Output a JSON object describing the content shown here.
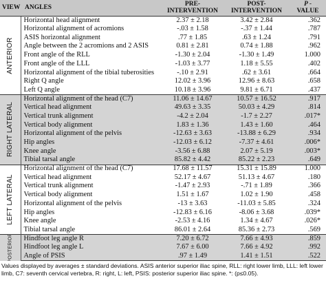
{
  "header": {
    "view": "VIEW",
    "angles": "ANGLES",
    "pre_line1": "PRE-",
    "pre_line2": "INTERVENTION",
    "post_line1": "POST-",
    "post_line2": "INTERVENTION",
    "p_line1": "P -",
    "p_line2": "VALUE"
  },
  "groups": [
    {
      "view": "ANTERIOR",
      "shaded": false,
      "rows": [
        {
          "angle": "Horizontal head alignment",
          "pre": "2.37 ± 2.18",
          "post": "3.42 ± 2.84",
          "p": ".362"
        },
        {
          "angle": "Horizontal alignment of acromions",
          "pre": "-.03 ± 1.58",
          "post": "-.37 ± 1.44",
          "p": ".787"
        },
        {
          "angle": "ASIS horizontal alignment",
          "pre": ".77 ± 1.85",
          "post": ".63 ± 1.24",
          "p": ".791"
        },
        {
          "angle": "Angle between the 2 acromions and 2 ASIS",
          "pre": "0.81 ± 2.81",
          "post": "0.74 ± 1.88",
          "p": ".962"
        },
        {
          "angle": "Front angle of the RLL",
          "pre": "-1.30 ± 2.04",
          "post": "-1.30 ± 1.49",
          "p": "1.000"
        },
        {
          "angle": "Front angle of the LLL",
          "pre": "-1.03 ± 3.77",
          "post": "1.18 ± 5.55",
          "p": ".402"
        },
        {
          "angle": "Horizontal alignment of the tibial tuberosities",
          "pre": "-.10 ± 2.91",
          "post": ".62 ± 3.61",
          "p": ".664"
        },
        {
          "angle": "Right Q angle",
          "pre": "12.02 ± 3.96",
          "post": "12.96 ± 8.63",
          "p": ".658"
        },
        {
          "angle": "Left Q angle",
          "pre": "10.18 ± 3.96",
          "post": "9.81 ± 6.71",
          "p": ".437"
        }
      ]
    },
    {
      "view": "RIGHT LATERAL",
      "shaded": true,
      "rows": [
        {
          "angle": "Horizontal alignment of the head (C7)",
          "pre": "11.06 ± 14.67",
          "post": "10.57 ± 16.52",
          "p": ".917"
        },
        {
          "angle": "Vertical head alignment",
          "pre": "49.63 ± 3.35",
          "post": "50.03 ± 4.29",
          "p": ".814"
        },
        {
          "angle": "Vertical trunk alignment",
          "pre": "-4.2 ± 2.04",
          "post": "-1.7 ± 2.27",
          "p": ".017*"
        },
        {
          "angle": "Vertical body alignment",
          "pre": "1.83 ± 1.36",
          "post": "1.43 ± 1.60",
          "p": ".464"
        },
        {
          "angle": "Horizontal alignment of the pelvis",
          "pre": "-12.63 ± 3.63",
          "post": "-13.88 ± 6.29",
          "p": ".934"
        },
        {
          "angle": "Hip angles",
          "pre": "-12.03 ± 6.12",
          "post": "-7.37 ± 4.61",
          "p": ".006*"
        },
        {
          "angle": "Knee angle",
          "pre": "-3.56 ± 6.88",
          "post": "2.07 ± 5.19",
          "p": ".003*"
        },
        {
          "angle": "Tibial tarsal angle",
          "pre": "85.82 ± 4.42",
          "post": "85.22 ± 2.23",
          "p": ".649"
        }
      ]
    },
    {
      "view": "LEFT LATERAL",
      "shaded": false,
      "rows": [
        {
          "angle": "Horizontal alignment of the head (C7)",
          "pre": "17.68 ± 11.57",
          "post": "15.31 ± 15.89",
          "p": "1.000"
        },
        {
          "angle": "Vertical head alignment",
          "pre": "52.17 ± 4.67",
          "post": "51.13 ± 4.67",
          "p": ".180"
        },
        {
          "angle": "Vertical trunk alignment",
          "pre": "-1.47 ± 2.93",
          "post": "-.71 ± 1.89",
          "p": ".366"
        },
        {
          "angle": "Vertical body alignment",
          "pre": "1.51 ± 1.67",
          "post": "1.02 ± 1.90",
          "p": ".458"
        },
        {
          "angle": "Horizontal alignment of the pelvis",
          "pre": "-13 ± 3.63",
          "post": "-11.03 ± 5.85",
          "p": ".324"
        },
        {
          "angle": "Hip angles",
          "pre": "-12.83 ± 6.16",
          "post": "-8.06 ± 3.68",
          "p": ".039*"
        },
        {
          "angle": "Knee angle",
          "pre": "-2.53 ± 4.16",
          "post": "1.34 ± 4.67",
          "p": ".026*"
        },
        {
          "angle": "Tibial tarsal angle",
          "pre": "86.01 ± 2.64",
          "post": "85.36 ± 2.73",
          "p": ".569"
        }
      ]
    },
    {
      "view": "POSTERIOR",
      "shaded": true,
      "rows": [
        {
          "angle": "Hindfoot leg angle R",
          "pre": "7.20 ± 6.72",
          "post": "7.66 ± 4.93",
          "p": ".859"
        },
        {
          "angle": "Hindfoot leg angle L",
          "pre": "7.67 ± 6.00",
          "post": "7.66 ± 4.92",
          "p": ".992"
        },
        {
          "angle": "Angle of PSIS",
          "pre": ".97 ± 1.49",
          "post": "1.41 ± 1.51",
          "p": ".522"
        }
      ]
    }
  ],
  "footnote": "Values displayed by averages ± standard deviations. ASIS anterior superior iliac spine, RLL: right lower limb, LLL: left lower limb, C7: seventh cervical vertebra, R: right, L: left, PSIS: posterior superior iliac spine. *: (p≤0.05)."
}
